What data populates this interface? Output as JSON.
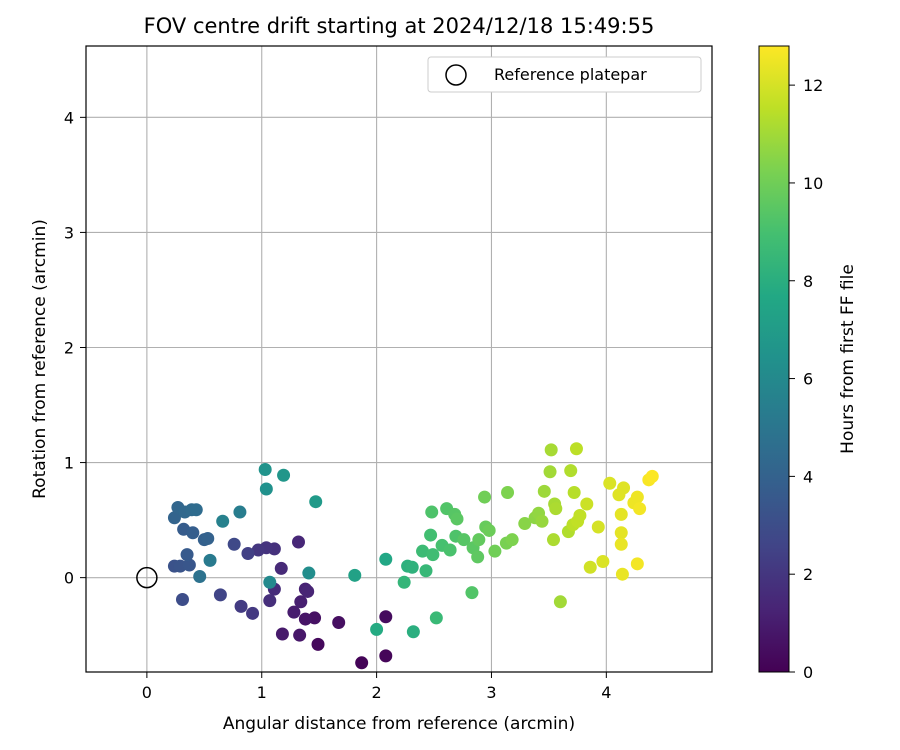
{
  "chart_data": {
    "type": "scatter",
    "title": "FOV centre drift starting at 2024/12/18 15:49:55",
    "xlabel": "Angular distance from reference (arcmin)",
    "ylabel": "Rotation from reference (arcmin)",
    "xlim": [
      -0.53,
      4.92
    ],
    "ylim": [
      -0.82,
      4.62
    ],
    "xticks": [
      0,
      1,
      2,
      3,
      4
    ],
    "yticks": [
      0,
      1,
      2,
      3,
      4
    ],
    "xtick_labels": [
      "0",
      "1",
      "2",
      "3",
      "4"
    ],
    "ytick_labels": [
      "0",
      "1",
      "2",
      "3",
      "4"
    ],
    "grid": true,
    "legend": {
      "label": "Reference platepar",
      "position": "top-right"
    },
    "reference_point": {
      "x": 0,
      "y": 0
    },
    "colorbar": {
      "label": "Hours from first FF file",
      "colormap": "viridis",
      "range": [
        0,
        12.8
      ],
      "ticks": [
        0,
        2,
        4,
        6,
        8,
        10,
        12
      ],
      "tick_labels": [
        "0",
        "2",
        "4",
        "6",
        "8",
        "10",
        "12"
      ]
    },
    "points": [
      {
        "x": 1.87,
        "y": -0.74,
        "h": 0.1
      },
      {
        "x": 2.08,
        "y": -0.68,
        "h": 0.2
      },
      {
        "x": 1.49,
        "y": -0.58,
        "h": 0.3
      },
      {
        "x": 2.08,
        "y": -0.34,
        "h": 0.4
      },
      {
        "x": 1.67,
        "y": -0.39,
        "h": 0.5
      },
      {
        "x": 1.46,
        "y": -0.35,
        "h": 0.6
      },
      {
        "x": 1.38,
        "y": -0.36,
        "h": 0.7
      },
      {
        "x": 1.33,
        "y": -0.5,
        "h": 0.8
      },
      {
        "x": 1.18,
        "y": -0.49,
        "h": 0.9
      },
      {
        "x": 1.28,
        "y": -0.3,
        "h": 1.0
      },
      {
        "x": 1.34,
        "y": -0.21,
        "h": 1.1
      },
      {
        "x": 1.38,
        "y": -0.1,
        "h": 1.2
      },
      {
        "x": 1.4,
        "y": -0.12,
        "h": 1.3
      },
      {
        "x": 1.32,
        "y": 0.31,
        "h": 1.4
      },
      {
        "x": 1.17,
        "y": 0.08,
        "h": 1.5
      },
      {
        "x": 1.11,
        "y": -0.1,
        "h": 1.6
      },
      {
        "x": 1.07,
        "y": -0.2,
        "h": 1.7
      },
      {
        "x": 1.11,
        "y": 0.25,
        "h": 1.8
      },
      {
        "x": 1.04,
        "y": 0.26,
        "h": 1.9
      },
      {
        "x": 0.97,
        "y": 0.24,
        "h": 2.0
      },
      {
        "x": 0.92,
        "y": -0.31,
        "h": 2.1
      },
      {
        "x": 0.82,
        "y": -0.25,
        "h": 2.2
      },
      {
        "x": 0.88,
        "y": 0.21,
        "h": 2.4
      },
      {
        "x": 0.64,
        "y": -0.15,
        "h": 2.6
      },
      {
        "x": 0.76,
        "y": 0.29,
        "h": 2.8
      },
      {
        "x": 0.31,
        "y": -0.19,
        "h": 3.0
      },
      {
        "x": 0.24,
        "y": 0.1,
        "h": 3.2
      },
      {
        "x": 0.29,
        "y": 0.1,
        "h": 3.3
      },
      {
        "x": 0.37,
        "y": 0.11,
        "h": 3.4
      },
      {
        "x": 0.35,
        "y": 0.2,
        "h": 3.6
      },
      {
        "x": 0.32,
        "y": 0.42,
        "h": 3.7
      },
      {
        "x": 0.4,
        "y": 0.39,
        "h": 3.8
      },
      {
        "x": 0.5,
        "y": 0.33,
        "h": 3.9
      },
      {
        "x": 0.53,
        "y": 0.34,
        "h": 4.0
      },
      {
        "x": 0.24,
        "y": 0.52,
        "h": 4.1
      },
      {
        "x": 0.27,
        "y": 0.61,
        "h": 4.2
      },
      {
        "x": 0.33,
        "y": 0.57,
        "h": 4.3
      },
      {
        "x": 0.39,
        "y": 0.59,
        "h": 4.4
      },
      {
        "x": 0.43,
        "y": 0.59,
        "h": 4.5
      },
      {
        "x": 0.46,
        "y": 0.01,
        "h": 4.8
      },
      {
        "x": 0.55,
        "y": 0.15,
        "h": 5.2
      },
      {
        "x": 0.81,
        "y": 0.57,
        "h": 5.4
      },
      {
        "x": 0.66,
        "y": 0.49,
        "h": 5.6
      },
      {
        "x": 1.07,
        "y": -0.04,
        "h": 6.0
      },
      {
        "x": 1.41,
        "y": 0.04,
        "h": 6.2
      },
      {
        "x": 1.04,
        "y": 0.77,
        "h": 6.4
      },
      {
        "x": 1.03,
        "y": 0.94,
        "h": 6.5
      },
      {
        "x": 1.19,
        "y": 0.89,
        "h": 6.7
      },
      {
        "x": 1.47,
        "y": 0.66,
        "h": 6.9
      },
      {
        "x": 1.81,
        "y": 0.02,
        "h": 7.3
      },
      {
        "x": 2.08,
        "y": 0.16,
        "h": 7.6
      },
      {
        "x": 2.0,
        "y": -0.45,
        "h": 7.8
      },
      {
        "x": 2.32,
        "y": -0.47,
        "h": 8.0
      },
      {
        "x": 2.27,
        "y": 0.1,
        "h": 8.1
      },
      {
        "x": 2.31,
        "y": 0.09,
        "h": 8.2
      },
      {
        "x": 2.24,
        "y": -0.04,
        "h": 8.4
      },
      {
        "x": 2.52,
        "y": -0.35,
        "h": 8.6
      },
      {
        "x": 2.43,
        "y": 0.06,
        "h": 8.5
      },
      {
        "x": 2.4,
        "y": 0.23,
        "h": 8.7
      },
      {
        "x": 2.49,
        "y": 0.2,
        "h": 8.8
      },
      {
        "x": 2.47,
        "y": 0.37,
        "h": 8.9
      },
      {
        "x": 2.57,
        "y": 0.28,
        "h": 9.0
      },
      {
        "x": 2.64,
        "y": 0.24,
        "h": 9.1
      },
      {
        "x": 2.48,
        "y": 0.57,
        "h": 9.2
      },
      {
        "x": 2.61,
        "y": 0.6,
        "h": 9.3
      },
      {
        "x": 2.68,
        "y": 0.55,
        "h": 9.4
      },
      {
        "x": 2.7,
        "y": 0.51,
        "h": 9.5
      },
      {
        "x": 2.69,
        "y": 0.36,
        "h": 9.2
      },
      {
        "x": 2.76,
        "y": 0.33,
        "h": 9.4
      },
      {
        "x": 2.84,
        "y": 0.26,
        "h": 9.5
      },
      {
        "x": 2.88,
        "y": 0.18,
        "h": 9.6
      },
      {
        "x": 2.89,
        "y": 0.33,
        "h": 9.7
      },
      {
        "x": 2.83,
        "y": -0.13,
        "h": 9.3
      },
      {
        "x": 2.95,
        "y": 0.44,
        "h": 9.8
      },
      {
        "x": 2.98,
        "y": 0.41,
        "h": 9.9
      },
      {
        "x": 2.94,
        "y": 0.7,
        "h": 10.0
      },
      {
        "x": 3.03,
        "y": 0.23,
        "h": 10.0
      },
      {
        "x": 3.13,
        "y": 0.3,
        "h": 10.2
      },
      {
        "x": 3.18,
        "y": 0.33,
        "h": 10.3
      },
      {
        "x": 3.14,
        "y": 0.74,
        "h": 10.3
      },
      {
        "x": 3.29,
        "y": 0.47,
        "h": 10.5
      },
      {
        "x": 3.38,
        "y": 0.52,
        "h": 10.6
      },
      {
        "x": 3.41,
        "y": 0.56,
        "h": 10.7
      },
      {
        "x": 3.44,
        "y": 0.49,
        "h": 10.8
      },
      {
        "x": 3.46,
        "y": 0.75,
        "h": 10.9
      },
      {
        "x": 3.51,
        "y": 0.92,
        "h": 11.0
      },
      {
        "x": 3.52,
        "y": 1.11,
        "h": 11.1
      },
      {
        "x": 3.55,
        "y": 0.64,
        "h": 11.1
      },
      {
        "x": 3.56,
        "y": 0.6,
        "h": 11.2
      },
      {
        "x": 3.54,
        "y": 0.33,
        "h": 11.2
      },
      {
        "x": 3.6,
        "y": -0.21,
        "h": 11.0
      },
      {
        "x": 3.67,
        "y": 0.4,
        "h": 11.3
      },
      {
        "x": 3.69,
        "y": 0.93,
        "h": 11.3
      },
      {
        "x": 3.72,
        "y": 0.74,
        "h": 11.4
      },
      {
        "x": 3.74,
        "y": 1.12,
        "h": 11.5
      },
      {
        "x": 3.71,
        "y": 0.46,
        "h": 11.5
      },
      {
        "x": 3.75,
        "y": 0.49,
        "h": 11.6
      },
      {
        "x": 3.77,
        "y": 0.54,
        "h": 11.6
      },
      {
        "x": 3.83,
        "y": 0.64,
        "h": 11.8
      },
      {
        "x": 3.86,
        "y": 0.09,
        "h": 11.9
      },
      {
        "x": 3.93,
        "y": 0.44,
        "h": 12.0
      },
      {
        "x": 3.97,
        "y": 0.14,
        "h": 12.1
      },
      {
        "x": 4.03,
        "y": 0.82,
        "h": 12.1
      },
      {
        "x": 4.11,
        "y": 0.72,
        "h": 12.2
      },
      {
        "x": 4.15,
        "y": 0.78,
        "h": 12.2
      },
      {
        "x": 4.13,
        "y": 0.55,
        "h": 12.3
      },
      {
        "x": 4.13,
        "y": 0.39,
        "h": 12.3
      },
      {
        "x": 4.13,
        "y": 0.29,
        "h": 12.4
      },
      {
        "x": 4.14,
        "y": 0.03,
        "h": 12.4
      },
      {
        "x": 4.24,
        "y": 0.65,
        "h": 12.5
      },
      {
        "x": 4.27,
        "y": 0.7,
        "h": 12.5
      },
      {
        "x": 4.29,
        "y": 0.6,
        "h": 12.6
      },
      {
        "x": 4.27,
        "y": 0.12,
        "h": 12.6
      },
      {
        "x": 4.37,
        "y": 0.85,
        "h": 12.7
      },
      {
        "x": 4.4,
        "y": 0.88,
        "h": 12.75
      }
    ]
  }
}
